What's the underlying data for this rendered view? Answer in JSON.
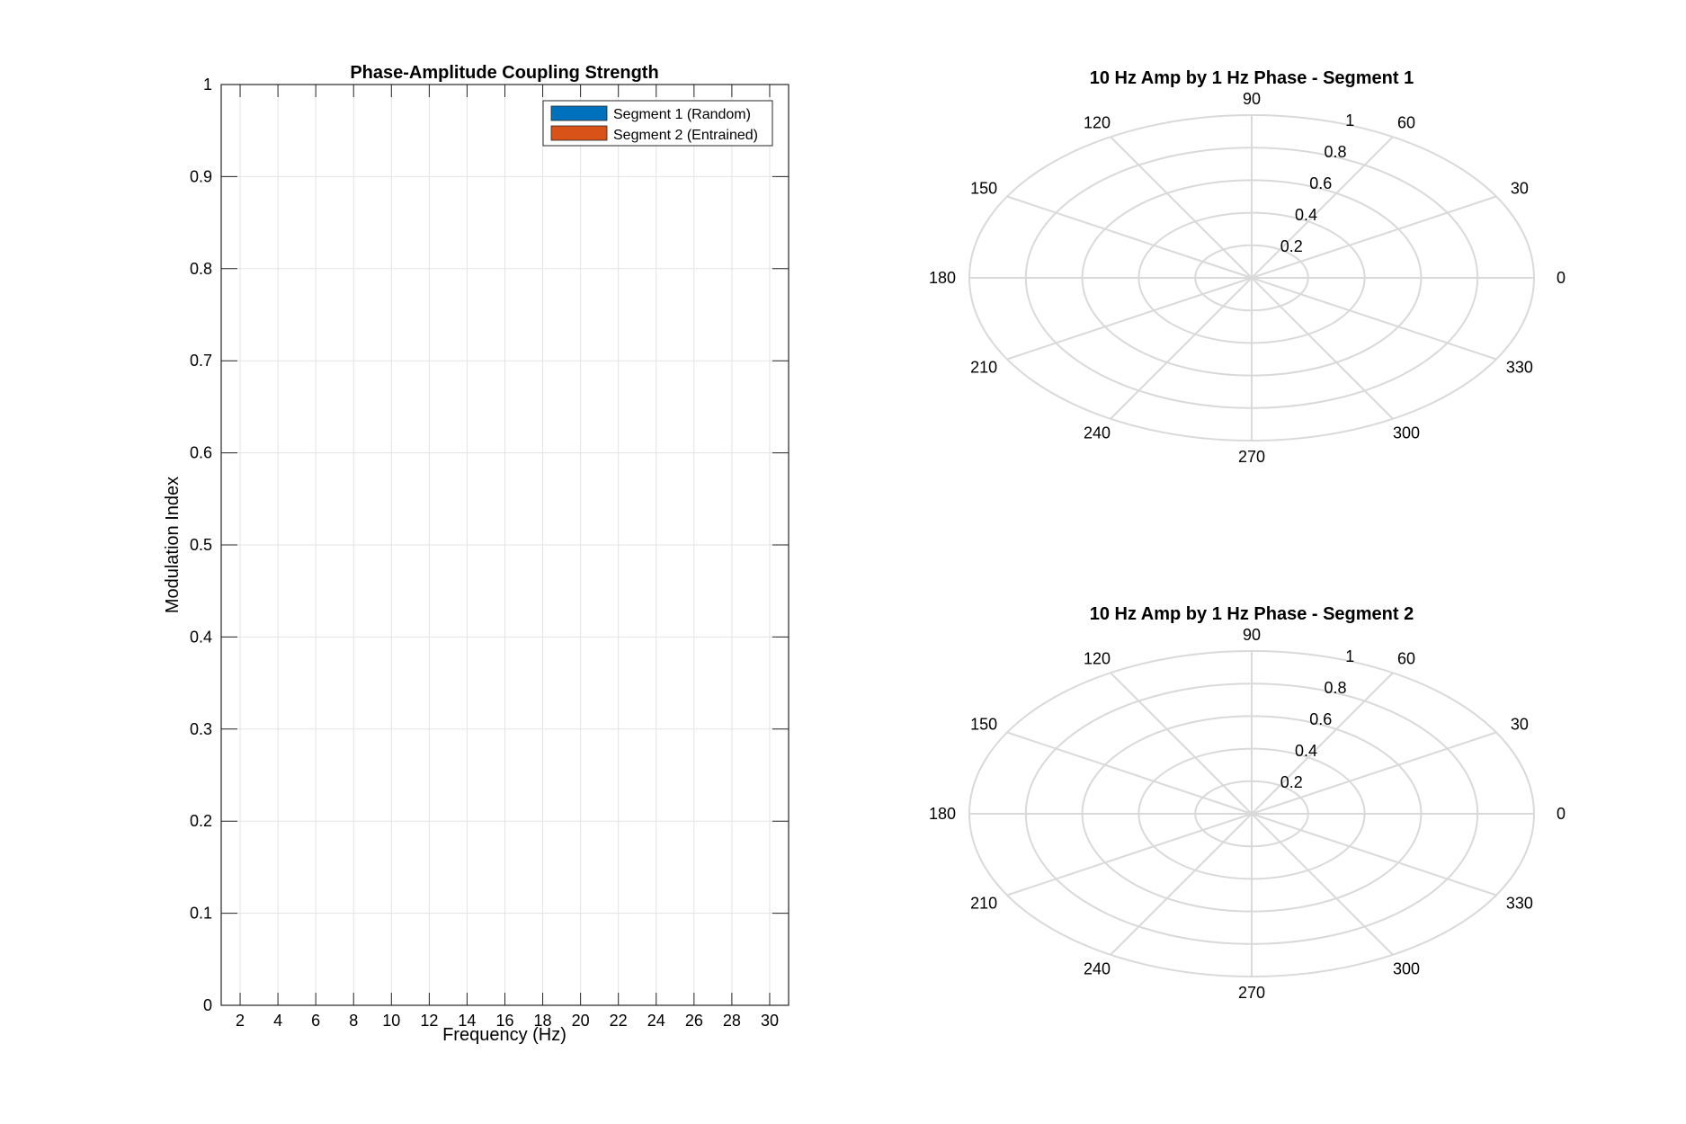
{
  "chart_data": [
    {
      "type": "bar",
      "title": "Phase-Amplitude Coupling Strength",
      "xlabel": "Frequency (Hz)",
      "ylabel": "Modulation Index",
      "x_ticks": [
        2,
        4,
        6,
        8,
        10,
        12,
        14,
        16,
        18,
        20,
        22,
        24,
        26,
        28,
        30
      ],
      "xlim": [
        1,
        31
      ],
      "ylim": [
        0,
        1
      ],
      "y_ticks": [
        0,
        0.1,
        0.2,
        0.3,
        0.4,
        0.5,
        0.6,
        0.7,
        0.8,
        0.9,
        1
      ],
      "y_tick_labels": [
        "0",
        "0.1",
        "0.2",
        "0.3",
        "0.4",
        "0.5",
        "0.6",
        "0.7",
        "0.8",
        "0.9",
        "1"
      ],
      "grid": true,
      "legend_position": "top-right",
      "series": [
        {
          "name": "Segment 1 (Random)",
          "color": "#0072BD",
          "values": []
        },
        {
          "name": "Segment 2 (Entrained)",
          "color": "#D95319",
          "values": []
        }
      ]
    },
    {
      "type": "polar",
      "title": "10 Hz Amp by 1 Hz Phase - Segment 1",
      "angle_ticks": [
        0,
        30,
        60,
        90,
        120,
        150,
        180,
        210,
        240,
        270,
        300,
        330
      ],
      "radius_ticks": [
        0.2,
        0.4,
        0.6,
        0.8,
        1
      ],
      "radius_tick_labels": [
        "0.2",
        "0.4",
        "0.6",
        "0.8",
        "1"
      ],
      "rlim": [
        0,
        1
      ],
      "grid": true,
      "series": []
    },
    {
      "type": "polar",
      "title": "10 Hz Amp by 1 Hz Phase - Segment 2",
      "angle_ticks": [
        0,
        30,
        60,
        90,
        120,
        150,
        180,
        210,
        240,
        270,
        300,
        330
      ],
      "radius_ticks": [
        0.2,
        0.4,
        0.6,
        0.8,
        1
      ],
      "radius_tick_labels": [
        "0.2",
        "0.4",
        "0.6",
        "0.8",
        "1"
      ],
      "rlim": [
        0,
        1
      ],
      "grid": true,
      "series": []
    }
  ]
}
